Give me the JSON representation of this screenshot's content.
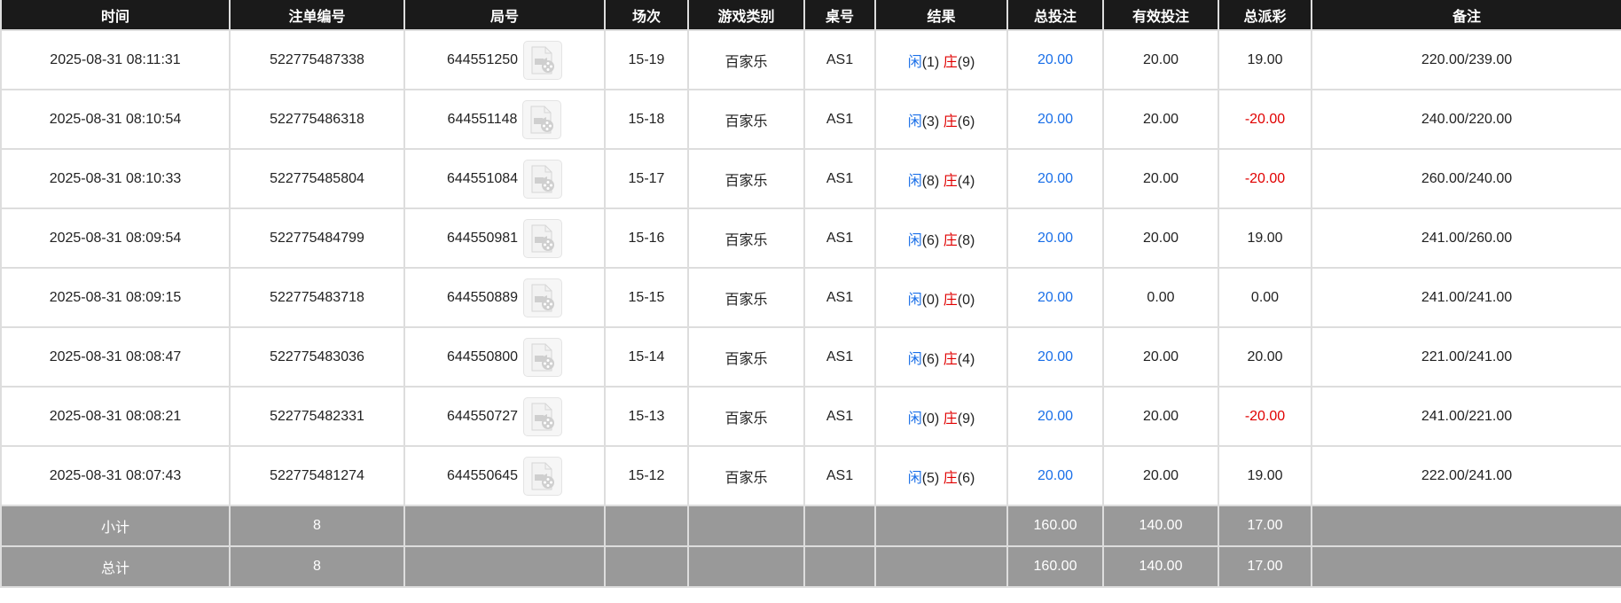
{
  "columns": [
    "时间",
    "注单编号",
    "局号",
    "场次",
    "游戏类别",
    "桌号",
    "结果",
    "总投注",
    "有效投注",
    "总派彩",
    "备注"
  ],
  "colors": {
    "header_bg": "#1a1a1a",
    "summary_bg": "#999999",
    "player": "#1a6fe8",
    "banker": "#e00000",
    "negative": "#e00000",
    "bet": "#1a6fe8"
  },
  "rows": [
    {
      "time": "2025-08-31 08:11:31",
      "bet_id": "522775487338",
      "round": "644551250",
      "shoe": "15-19",
      "game": "百家乐",
      "table": "AS1",
      "player_label": "闲",
      "player_score": "(1)",
      "banker_label": "庄",
      "banker_score": "(9)",
      "total_bet": "20.00",
      "valid_bet": "20.00",
      "payout": "19.00",
      "payout_negative": false,
      "note": "220.00/239.00"
    },
    {
      "time": "2025-08-31 08:10:54",
      "bet_id": "522775486318",
      "round": "644551148",
      "shoe": "15-18",
      "game": "百家乐",
      "table": "AS1",
      "player_label": "闲",
      "player_score": "(3)",
      "banker_label": "庄",
      "banker_score": "(6)",
      "total_bet": "20.00",
      "valid_bet": "20.00",
      "payout": "-20.00",
      "payout_negative": true,
      "note": "240.00/220.00"
    },
    {
      "time": "2025-08-31 08:10:33",
      "bet_id": "522775485804",
      "round": "644551084",
      "shoe": "15-17",
      "game": "百家乐",
      "table": "AS1",
      "player_label": "闲",
      "player_score": "(8)",
      "banker_label": "庄",
      "banker_score": "(4)",
      "total_bet": "20.00",
      "valid_bet": "20.00",
      "payout": "-20.00",
      "payout_negative": true,
      "note": "260.00/240.00"
    },
    {
      "time": "2025-08-31 08:09:54",
      "bet_id": "522775484799",
      "round": "644550981",
      "shoe": "15-16",
      "game": "百家乐",
      "table": "AS1",
      "player_label": "闲",
      "player_score": "(6)",
      "banker_label": "庄",
      "banker_score": "(8)",
      "total_bet": "20.00",
      "valid_bet": "20.00",
      "payout": "19.00",
      "payout_negative": false,
      "note": "241.00/260.00"
    },
    {
      "time": "2025-08-31 08:09:15",
      "bet_id": "522775483718",
      "round": "644550889",
      "shoe": "15-15",
      "game": "百家乐",
      "table": "AS1",
      "player_label": "闲",
      "player_score": "(0)",
      "banker_label": "庄",
      "banker_score": "(0)",
      "total_bet": "20.00",
      "valid_bet": "0.00",
      "payout": "0.00",
      "payout_negative": false,
      "note": "241.00/241.00"
    },
    {
      "time": "2025-08-31 08:08:47",
      "bet_id": "522775483036",
      "round": "644550800",
      "shoe": "15-14",
      "game": "百家乐",
      "table": "AS1",
      "player_label": "闲",
      "player_score": "(6)",
      "banker_label": "庄",
      "banker_score": "(4)",
      "total_bet": "20.00",
      "valid_bet": "20.00",
      "payout": "20.00",
      "payout_negative": false,
      "note": "221.00/241.00"
    },
    {
      "time": "2025-08-31 08:08:21",
      "bet_id": "522775482331",
      "round": "644550727",
      "shoe": "15-13",
      "game": "百家乐",
      "table": "AS1",
      "player_label": "闲",
      "player_score": "(0)",
      "banker_label": "庄",
      "banker_score": "(9)",
      "total_bet": "20.00",
      "valid_bet": "20.00",
      "payout": "-20.00",
      "payout_negative": true,
      "note": "241.00/221.00"
    },
    {
      "time": "2025-08-31 08:07:43",
      "bet_id": "522775481274",
      "round": "644550645",
      "shoe": "15-12",
      "game": "百家乐",
      "table": "AS1",
      "player_label": "闲",
      "player_score": "(5)",
      "banker_label": "庄",
      "banker_score": "(6)",
      "total_bet": "20.00",
      "valid_bet": "20.00",
      "payout": "19.00",
      "payout_negative": false,
      "note": "222.00/241.00"
    }
  ],
  "summary": [
    {
      "label": "小计",
      "count": "8",
      "total_bet": "160.00",
      "valid_bet": "140.00",
      "payout": "17.00"
    },
    {
      "label": "总计",
      "count": "8",
      "total_bet": "160.00",
      "valid_bet": "140.00",
      "payout": "17.00"
    }
  ]
}
